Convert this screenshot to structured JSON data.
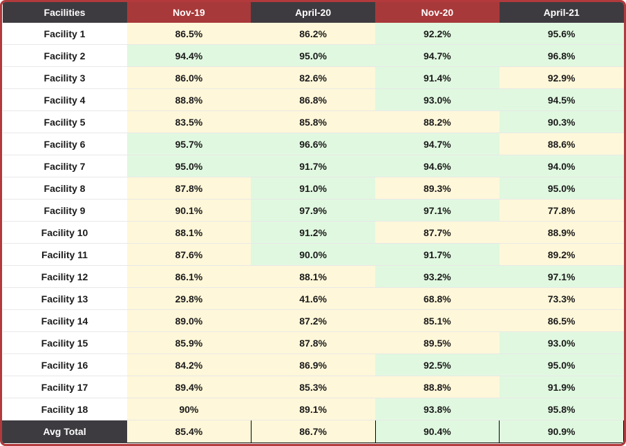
{
  "table": {
    "header": [
      "Facilities",
      "Nov-19",
      "April-20",
      "Nov-20",
      "April-21"
    ],
    "rows": [
      {
        "label": "Facility 1",
        "cells": [
          "86.5%",
          "86.2%",
          "92.2%",
          "95.6%"
        ],
        "colors": [
          "#fff7d9",
          "#fff7d9",
          "#e0f8e0",
          "#e0f8e0"
        ]
      },
      {
        "label": "Facility 2",
        "cells": [
          "94.4%",
          "95.0%",
          "94.7%",
          "96.8%"
        ],
        "colors": [
          "#e0f8e0",
          "#e0f8e0",
          "#e0f8e0",
          "#e0f8e0"
        ]
      },
      {
        "label": "Facility 3",
        "cells": [
          "86.0%",
          "82.6%",
          "91.4%",
          "92.9%"
        ],
        "colors": [
          "#fff7d9",
          "#fff7d9",
          "#e0f8e0",
          "#fff7d9"
        ]
      },
      {
        "label": "Facility 4",
        "cells": [
          "88.8%",
          "86.8%",
          "93.0%",
          "94.5%"
        ],
        "colors": [
          "#fff7d9",
          "#fff7d9",
          "#e0f8e0",
          "#e0f8e0"
        ]
      },
      {
        "label": "Facility 5",
        "cells": [
          "83.5%",
          "85.8%",
          "88.2%",
          "90.3%"
        ],
        "colors": [
          "#fff7d9",
          "#fff7d9",
          "#fff7d9",
          "#e0f8e0"
        ]
      },
      {
        "label": "Facility 6",
        "cells": [
          "95.7%",
          "96.6%",
          "94.7%",
          "88.6%"
        ],
        "colors": [
          "#e0f8e0",
          "#e0f8e0",
          "#e0f8e0",
          "#fff7d9"
        ]
      },
      {
        "label": "Facility 7",
        "cells": [
          "95.0%",
          "91.7%",
          "94.6%",
          "94.0%"
        ],
        "colors": [
          "#e0f8e0",
          "#e0f8e0",
          "#e0f8e0",
          "#e0f8e0"
        ]
      },
      {
        "label": "Facility 8",
        "cells": [
          "87.8%",
          "91.0%",
          "89.3%",
          "95.0%"
        ],
        "colors": [
          "#fff7d9",
          "#e0f8e0",
          "#fff7d9",
          "#e0f8e0"
        ]
      },
      {
        "label": "Facility 9",
        "cells": [
          "90.1%",
          "97.9%",
          "97.1%",
          "77.8%"
        ],
        "colors": [
          "#fff7d9",
          "#e0f8e0",
          "#e0f8e0",
          "#fff7d9"
        ]
      },
      {
        "label": "Facility 10",
        "cells": [
          "88.1%",
          "91.2%",
          "87.7%",
          "88.9%"
        ],
        "colors": [
          "#fff7d9",
          "#e0f8e0",
          "#fff7d9",
          "#fff7d9"
        ]
      },
      {
        "label": "Facility 11",
        "cells": [
          "87.6%",
          "90.0%",
          "91.7%",
          "89.2%"
        ],
        "colors": [
          "#fff7d9",
          "#e0f8e0",
          "#e0f8e0",
          "#fff7d9"
        ]
      },
      {
        "label": "Facility 12",
        "cells": [
          "86.1%",
          "88.1%",
          "93.2%",
          "97.1%"
        ],
        "colors": [
          "#fff7d9",
          "#fff7d9",
          "#e0f8e0",
          "#e0f8e0"
        ]
      },
      {
        "label": "Facility 13",
        "cells": [
          "29.8%",
          "41.6%",
          "68.8%",
          "73.3%"
        ],
        "colors": [
          "#fff7d9",
          "#fff7d9",
          "#fff7d9",
          "#fff7d9"
        ]
      },
      {
        "label": "Facility 14",
        "cells": [
          "89.0%",
          "87.2%",
          "85.1%",
          "86.5%"
        ],
        "colors": [
          "#fff7d9",
          "#fff7d9",
          "#fff7d9",
          "#fff7d9"
        ]
      },
      {
        "label": "Facility 15",
        "cells": [
          "85.9%",
          "87.8%",
          "89.5%",
          "93.0%"
        ],
        "colors": [
          "#fff7d9",
          "#fff7d9",
          "#fff7d9",
          "#e0f8e0"
        ]
      },
      {
        "label": "Facility 16",
        "cells": [
          "84.2%",
          "86.9%",
          "92.5%",
          "95.0%"
        ],
        "colors": [
          "#fff7d9",
          "#fff7d9",
          "#e0f8e0",
          "#e0f8e0"
        ]
      },
      {
        "label": "Facility 17",
        "cells": [
          "89.4%",
          "85.3%",
          "88.8%",
          "91.9%"
        ],
        "colors": [
          "#fff7d9",
          "#fff7d9",
          "#fff7d9",
          "#e0f8e0"
        ]
      },
      {
        "label": "Facility 18",
        "cells": [
          "90%",
          "89.1%",
          "93.8%",
          "95.8%"
        ],
        "colors": [
          "#fff7d9",
          "#fff7d9",
          "#e0f8e0",
          "#e0f8e0"
        ]
      }
    ],
    "total": {
      "label": "Avg Total",
      "cells": [
        "85.4%",
        "86.7%",
        "90.4%",
        "90.9%"
      ],
      "colors": [
        "#fff7d9",
        "#fff7d9",
        "#e0f8e0",
        "#e0f8e0"
      ]
    }
  }
}
